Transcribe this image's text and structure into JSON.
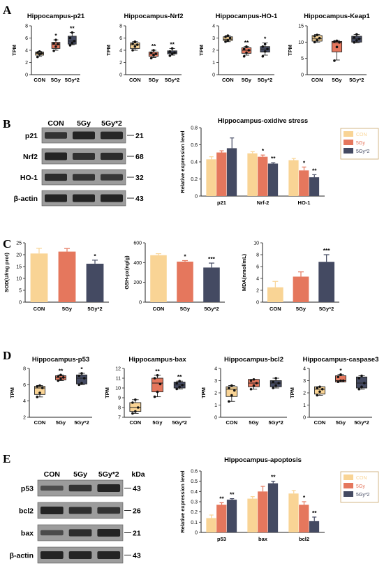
{
  "colors": {
    "con": "#f9d495",
    "fiveGy": "#e5775d",
    "fiveGy2": "#444a62",
    "axis": "#222222",
    "blot_bg": "#9c9c9c",
    "band": "#1e1e1e"
  },
  "panels": {
    "A": "A",
    "B": "B",
    "C": "C",
    "D": "D",
    "E": "E"
  },
  "blots": {
    "B": {
      "lanes": [
        "CON",
        "5Gy",
        "5Gy*2"
      ],
      "rows": [
        {
          "label": "p21",
          "kda": "21",
          "intensity": [
            0.8,
            1.0,
            0.95
          ]
        },
        {
          "label": "Nrf2",
          "kda": "68",
          "intensity": [
            1.0,
            0.85,
            0.9
          ]
        },
        {
          "label": "HO-1",
          "kda": "32",
          "intensity": [
            0.9,
            0.8,
            0.75
          ]
        },
        {
          "label": "β-actin",
          "kda": "43",
          "intensity": [
            1.0,
            1.0,
            1.0
          ]
        }
      ]
    },
    "E": {
      "lanes": [
        "CON",
        "5Gy",
        "5Gy*2"
      ],
      "kda_header": "kDa",
      "rows": [
        {
          "label": "p53",
          "kda": "43",
          "intensity": [
            0.45,
            0.8,
            1.0
          ]
        },
        {
          "label": "bcl2",
          "kda": "26",
          "intensity": [
            1.0,
            0.85,
            0.8
          ]
        },
        {
          "label": "bax",
          "kda": "21",
          "intensity": [
            0.5,
            0.9,
            1.0
          ]
        },
        {
          "label": "β-actin",
          "kda": "43",
          "intensity": [
            1.0,
            1.0,
            1.0
          ]
        }
      ]
    }
  },
  "chart_data": [
    {
      "id": "A1",
      "type": "box",
      "title": "Hippocampus-p21",
      "ylabel": "TPM",
      "categories": [
        "CON",
        "5Gy",
        "5Gy*2"
      ],
      "ylim": [
        0,
        8
      ],
      "yticks": [
        0,
        2,
        4,
        6,
        8
      ],
      "boxes": [
        {
          "min": 3.0,
          "q1": 3.2,
          "median": 3.5,
          "q3": 3.7,
          "max": 3.8
        },
        {
          "min": 4.0,
          "q1": 4.3,
          "median": 5.0,
          "q3": 5.3,
          "max": 5.7
        },
        {
          "min": 4.9,
          "q1": 5.0,
          "median": 5.5,
          "q3": 6.3,
          "max": 6.9
        }
      ],
      "points": [
        [
          2.9,
          3.3,
          3.5,
          3.6,
          3.8
        ],
        [
          3.9,
          4.6,
          5.0,
          5.1,
          5.7
        ],
        [
          4.8,
          5.2,
          5.5,
          6.0,
          6.9
        ]
      ],
      "sig": [
        "",
        "*",
        "**"
      ]
    },
    {
      "id": "A2",
      "type": "box",
      "title": "Hippocampus-Nrf2",
      "ylabel": "TPM",
      "categories": [
        "CON",
        "5Gy",
        "5Gy*2"
      ],
      "ylim": [
        0,
        8
      ],
      "yticks": [
        0,
        2,
        4,
        6,
        8
      ],
      "boxes": [
        {
          "min": 4.0,
          "q1": 4.3,
          "median": 4.9,
          "q3": 5.2,
          "max": 5.4
        },
        {
          "min": 2.8,
          "q1": 3.0,
          "median": 3.4,
          "q3": 3.7,
          "max": 4.0
        },
        {
          "min": 3.2,
          "q1": 3.4,
          "median": 3.6,
          "q3": 3.9,
          "max": 4.3
        }
      ],
      "points": [
        [
          4.0,
          4.6,
          4.9,
          5.1,
          5.4
        ],
        [
          2.7,
          3.2,
          3.4,
          3.6,
          4.0
        ],
        [
          3.1,
          3.4,
          3.6,
          3.8,
          4.3
        ]
      ],
      "sig": [
        "",
        "**",
        "**"
      ]
    },
    {
      "id": "A3",
      "type": "box",
      "title": "Hippocampus-HO-1",
      "ylabel": "TPM",
      "categories": [
        "CON",
        "5Gy",
        "5Gy*2"
      ],
      "ylim": [
        0,
        4
      ],
      "yticks": [
        0,
        1,
        2,
        3,
        4
      ],
      "boxes": [
        {
          "min": 2.7,
          "q1": 2.8,
          "median": 2.9,
          "q3": 3.1,
          "max": 3.2
        },
        {
          "min": 1.6,
          "q1": 1.75,
          "median": 2.0,
          "q3": 2.2,
          "max": 2.3
        },
        {
          "min": 1.6,
          "q1": 1.85,
          "median": 2.1,
          "q3": 2.3,
          "max": 2.6
        }
      ],
      "points": [
        [
          2.7,
          2.8,
          3.0,
          3.1,
          3.2
        ],
        [
          1.5,
          1.8,
          2.0,
          2.1,
          2.3
        ],
        [
          1.5,
          1.9,
          2.1,
          2.3,
          2.5
        ]
      ],
      "sig": [
        "",
        "**",
        "*"
      ]
    },
    {
      "id": "A4",
      "type": "box",
      "title": "Hippocampus-Keap1",
      "ylabel": "TPM",
      "categories": [
        "CON",
        "5Gy",
        "5Gy*2"
      ],
      "ylim": [
        0,
        15
      ],
      "yticks": [
        0,
        5,
        10,
        15
      ],
      "boxes": [
        {
          "min": 10.0,
          "q1": 10.3,
          "median": 11.0,
          "q3": 12.0,
          "max": 12.3
        },
        {
          "min": 4.5,
          "q1": 7.0,
          "median": 9.8,
          "q3": 10.2,
          "max": 10.5
        },
        {
          "min": 9.8,
          "q1": 10.0,
          "median": 11.0,
          "q3": 11.8,
          "max": 12.3
        }
      ],
      "points": [
        [
          10.0,
          10.6,
          11.2,
          11.8,
          12.2
        ],
        [
          4.3,
          8.5,
          9.9,
          10.2,
          10.4
        ],
        [
          9.9,
          10.5,
          11.0,
          11.5,
          12.4
        ]
      ],
      "sig": [
        "",
        "",
        ""
      ]
    },
    {
      "id": "B",
      "type": "bar",
      "title": "HIppocampus-oxidive stress",
      "ylabel": "Relative expression level",
      "categories": [
        "p21",
        "Nrf-2",
        "HO-1"
      ],
      "ylim": [
        0,
        0.8
      ],
      "yticks": [
        0.0,
        0.2,
        0.4,
        0.6,
        0.8
      ],
      "series": [
        {
          "name": "CON",
          "values": [
            0.43,
            0.5,
            0.42
          ],
          "err": [
            0.03,
            0.02,
            0.02
          ],
          "sig": [
            "",
            "",
            ""
          ]
        },
        {
          "name": "5Gy",
          "values": [
            0.51,
            0.46,
            0.3
          ],
          "err": [
            0.02,
            0.02,
            0.04
          ],
          "sig": [
            "",
            "*",
            "*"
          ]
        },
        {
          "name": "5Gy*2",
          "values": [
            0.56,
            0.38,
            0.22
          ],
          "err": [
            0.12,
            0.01,
            0.03
          ],
          "sig": [
            "",
            "**",
            "**"
          ]
        }
      ],
      "legend": "top-right"
    },
    {
      "id": "C1",
      "type": "bar",
      "title": "",
      "ylabel": "SOD(U/mg prot)",
      "categories": [
        "CON",
        "5Gy",
        "5Gy*2"
      ],
      "ylim": [
        0,
        25
      ],
      "yticks": [
        0,
        5,
        10,
        15,
        20,
        25
      ],
      "values": [
        20.5,
        21.3,
        16.2
      ],
      "err": [
        2.2,
        1.3,
        1.5
      ],
      "sig": [
        "",
        "",
        "*"
      ]
    },
    {
      "id": "C2",
      "type": "bar",
      "title": "",
      "ylabel": "GSH-px(ng/g)",
      "categories": [
        "CON",
        "5Gy",
        "5Gy*2"
      ],
      "ylim": [
        0,
        600
      ],
      "yticks": [
        0,
        200,
        400,
        600
      ],
      "values": [
        475,
        410,
        350
      ],
      "err": [
        15,
        10,
        45
      ],
      "sig": [
        "",
        "*",
        "***"
      ]
    },
    {
      "id": "C3",
      "type": "bar",
      "title": "",
      "ylabel": "MDA(nmol/mL)",
      "categories": [
        "CON",
        "5Gy",
        "5Gy*2"
      ],
      "ylim": [
        0,
        10
      ],
      "yticks": [
        0,
        2,
        4,
        6,
        8,
        10
      ],
      "values": [
        2.5,
        4.3,
        6.8
      ],
      "err": [
        1.0,
        0.8,
        1.2
      ],
      "sig": [
        "",
        "",
        "***"
      ]
    },
    {
      "id": "D1",
      "type": "box",
      "title": "Hippocampus-p53",
      "ylabel": "TPM",
      "categories": [
        "CON",
        "5Gy",
        "5Gy*2"
      ],
      "ylim": [
        2,
        8
      ],
      "yticks": [
        2,
        4,
        6,
        8
      ],
      "boxes": [
        {
          "min": 4.5,
          "q1": 4.8,
          "median": 5.6,
          "q3": 5.8,
          "max": 5.9
        },
        {
          "min": 6.5,
          "q1": 6.6,
          "median": 6.9,
          "q3": 7.1,
          "max": 7.2
        },
        {
          "min": 6.0,
          "q1": 6.1,
          "median": 6.8,
          "q3": 7.2,
          "max": 7.4
        }
      ],
      "points": [
        [
          4.5,
          5.0,
          5.6,
          5.8,
          5.9
        ],
        [
          6.5,
          6.7,
          6.9,
          7.0,
          7.2
        ],
        [
          6.0,
          6.2,
          6.8,
          7.1,
          7.4
        ]
      ],
      "sig": [
        "",
        "**",
        "*"
      ]
    },
    {
      "id": "D2",
      "type": "box",
      "title": "Hippocampus-bax",
      "ylabel": "TPM",
      "categories": [
        "CON",
        "5Gy",
        "5Gy*2"
      ],
      "ylim": [
        7,
        12
      ],
      "yticks": [
        7,
        8,
        9,
        10,
        11,
        12
      ],
      "boxes": [
        {
          "min": 7.4,
          "q1": 7.6,
          "median": 8.0,
          "q3": 8.5,
          "max": 8.8
        },
        {
          "min": 9.1,
          "q1": 9.6,
          "median": 10.5,
          "q3": 11.0,
          "max": 11.3
        },
        {
          "min": 9.9,
          "q1": 10.0,
          "median": 10.3,
          "q3": 10.6,
          "max": 10.7
        }
      ],
      "points": [
        [
          7.4,
          7.6,
          8.0,
          8.5,
          8.8
        ],
        [
          9.1,
          9.6,
          10.4,
          11.0,
          11.3
        ],
        [
          9.9,
          10.1,
          10.3,
          10.5,
          10.7
        ]
      ],
      "sig": [
        "",
        "**",
        "**"
      ]
    },
    {
      "id": "D3",
      "type": "box",
      "title": "Hippocampus-bcl2",
      "ylabel": "TPM",
      "categories": [
        "CON",
        "5Gy",
        "5Gy*2"
      ],
      "ylim": [
        0,
        4
      ],
      "yticks": [
        0,
        1,
        2,
        3,
        4
      ],
      "boxes": [
        {
          "min": 1.3,
          "q1": 1.7,
          "median": 2.3,
          "q3": 2.5,
          "max": 2.6
        },
        {
          "min": 2.3,
          "q1": 2.5,
          "median": 2.8,
          "q3": 3.1,
          "max": 3.1
        },
        {
          "min": 2.4,
          "q1": 2.5,
          "median": 2.8,
          "q3": 3.0,
          "max": 3.2
        }
      ],
      "points": [
        [
          1.3,
          1.8,
          2.2,
          2.4,
          2.6
        ],
        [
          2.3,
          2.6,
          2.8,
          3.0,
          3.1
        ],
        [
          2.4,
          2.6,
          2.8,
          2.9,
          3.2
        ]
      ],
      "sig": [
        "",
        "",
        ""
      ]
    },
    {
      "id": "D4",
      "type": "box",
      "title": "Hippocampus-caspase3",
      "ylabel": "TPM",
      "categories": [
        "CON",
        "5Gy",
        "5Gy*2"
      ],
      "ylim": [
        0,
        4
      ],
      "yticks": [
        0,
        1,
        2,
        3,
        4
      ],
      "boxes": [
        {
          "min": 1.8,
          "q1": 1.9,
          "median": 2.3,
          "q3": 2.5,
          "max": 2.5
        },
        {
          "min": 2.9,
          "q1": 2.9,
          "median": 3.0,
          "q3": 3.4,
          "max": 3.5
        },
        {
          "min": 2.3,
          "q1": 2.4,
          "median": 2.8,
          "q3": 3.3,
          "max": 3.4
        }
      ],
      "points": [
        [
          1.8,
          2.1,
          2.3,
          2.4,
          2.5
        ],
        [
          2.9,
          3.0,
          3.0,
          3.3,
          3.5
        ],
        [
          2.3,
          2.5,
          2.8,
          3.2,
          3.4
        ]
      ],
      "sig": [
        "",
        "*",
        ""
      ]
    },
    {
      "id": "E",
      "type": "bar",
      "title": "HIppocampus-apoptosis",
      "ylabel": "Relative expression level",
      "categories": [
        "p53",
        "bax",
        "bcl2"
      ],
      "ylim": [
        0,
        0.6
      ],
      "yticks": [
        0.0,
        0.1,
        0.2,
        0.3,
        0.4,
        0.5,
        0.6
      ],
      "series": [
        {
          "name": "CON",
          "values": [
            0.14,
            0.33,
            0.38
          ],
          "err": [
            0.03,
            0.02,
            0.03
          ],
          "sig": [
            "",
            "",
            ""
          ]
        },
        {
          "name": "5Gy",
          "values": [
            0.27,
            0.4,
            0.27
          ],
          "err": [
            0.02,
            0.05,
            0.03
          ],
          "sig": [
            "**",
            "",
            "*"
          ]
        },
        {
          "name": "5Gy*2",
          "values": [
            0.32,
            0.48,
            0.11
          ],
          "err": [
            0.01,
            0.02,
            0.04
          ],
          "sig": [
            "**",
            "**",
            "**"
          ]
        }
      ],
      "legend": "top-right"
    }
  ]
}
